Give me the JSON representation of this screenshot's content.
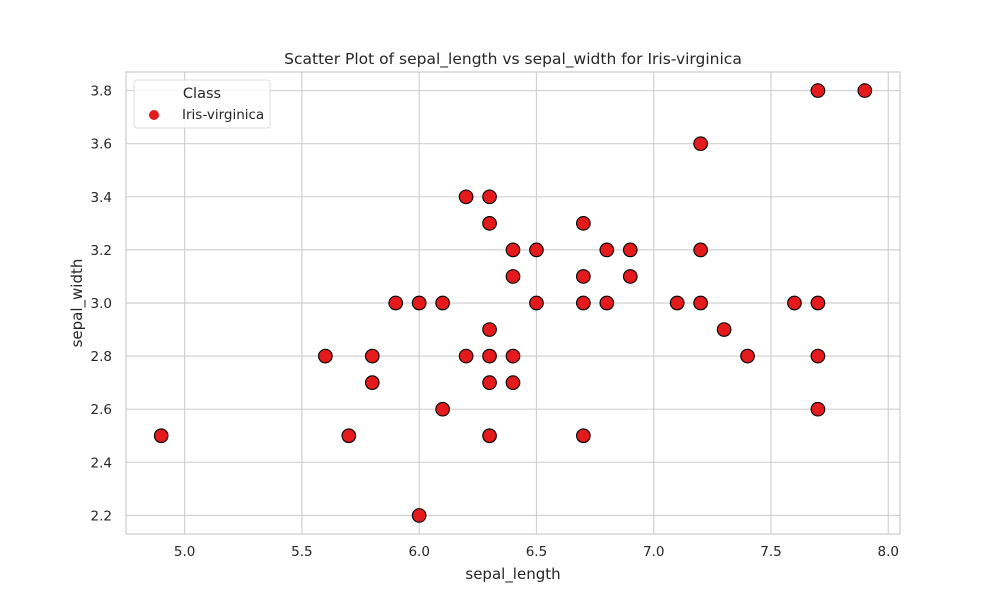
{
  "chart_data": {
    "type": "scatter",
    "title": "Scatter Plot of sepal_length vs sepal_width for Iris-virginica",
    "xlabel": "sepal_length",
    "ylabel": "sepal_width",
    "xlim": [
      4.75,
      8.05
    ],
    "ylim": [
      2.13,
      3.87
    ],
    "xticks": [
      5.0,
      5.5,
      6.0,
      6.5,
      7.0,
      7.5,
      8.0
    ],
    "xtick_labels": [
      "5.0",
      "5.5",
      "6.0",
      "6.5",
      "7.0",
      "7.5",
      "8.0"
    ],
    "yticks": [
      2.2,
      2.4,
      2.6,
      2.8,
      3.0,
      3.2,
      3.4,
      3.6,
      3.8
    ],
    "ytick_labels": [
      "2.2",
      "2.4",
      "2.6",
      "2.8",
      "3.0",
      "3.2",
      "3.4",
      "3.6",
      "3.8"
    ],
    "grid": true,
    "legend": {
      "title": "Class",
      "position": "top-left"
    },
    "series": [
      {
        "name": "Iris-virginica",
        "color": "#e41a1c",
        "edge_color": "#000000",
        "points": [
          [
            4.9,
            2.5
          ],
          [
            5.6,
            2.8
          ],
          [
            5.7,
            2.5
          ],
          [
            5.8,
            2.7
          ],
          [
            5.8,
            2.8
          ],
          [
            5.9,
            3.0
          ],
          [
            6.0,
            3.0
          ],
          [
            6.0,
            2.2
          ],
          [
            6.1,
            3.0
          ],
          [
            6.1,
            2.6
          ],
          [
            6.2,
            3.4
          ],
          [
            6.2,
            2.8
          ],
          [
            6.3,
            3.4
          ],
          [
            6.3,
            3.3
          ],
          [
            6.3,
            2.9
          ],
          [
            6.3,
            2.8
          ],
          [
            6.3,
            2.7
          ],
          [
            6.3,
            2.5
          ],
          [
            6.4,
            3.2
          ],
          [
            6.4,
            3.1
          ],
          [
            6.4,
            2.8
          ],
          [
            6.4,
            2.7
          ],
          [
            6.5,
            3.2
          ],
          [
            6.5,
            3.0
          ],
          [
            6.7,
            3.3
          ],
          [
            6.7,
            3.1
          ],
          [
            6.7,
            3.0
          ],
          [
            6.7,
            2.5
          ],
          [
            6.8,
            3.2
          ],
          [
            6.8,
            3.0
          ],
          [
            6.9,
            3.2
          ],
          [
            6.9,
            3.1
          ],
          [
            7.1,
            3.0
          ],
          [
            7.2,
            3.6
          ],
          [
            7.2,
            3.2
          ],
          [
            7.2,
            3.0
          ],
          [
            7.3,
            2.9
          ],
          [
            7.4,
            2.8
          ],
          [
            7.6,
            3.0
          ],
          [
            7.7,
            3.8
          ],
          [
            7.7,
            3.0
          ],
          [
            7.7,
            2.8
          ],
          [
            7.7,
            2.6
          ],
          [
            7.9,
            3.8
          ]
        ]
      }
    ]
  },
  "colors": {
    "grid": "#d0d0d0",
    "axes_edge": "#cccccc",
    "text": "#262626"
  }
}
